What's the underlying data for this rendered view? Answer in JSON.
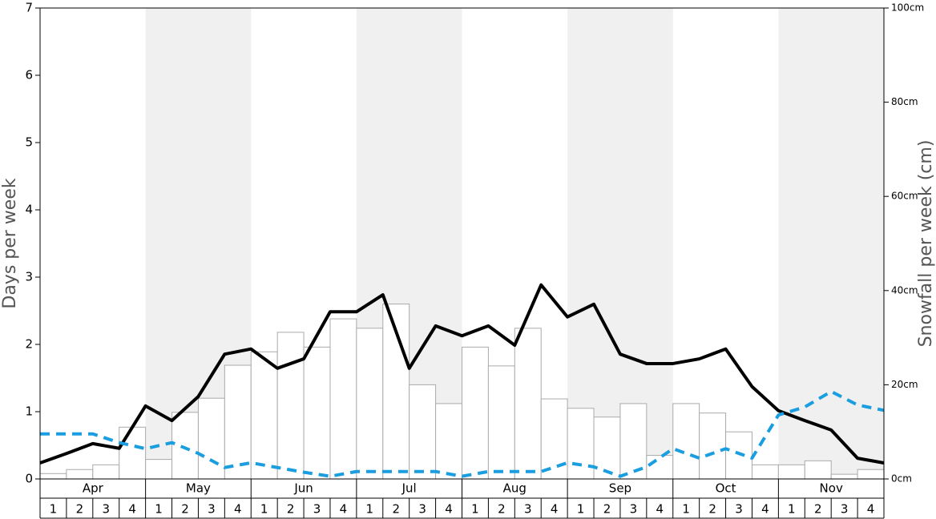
{
  "chart_data": {
    "type": "bar",
    "ylabel": "Days per week",
    "y2label": "Snowfall per week (cm)",
    "months": [
      "Apr",
      "May",
      "Jun",
      "Jul",
      "Aug",
      "Sep",
      "Oct",
      "Nov"
    ],
    "categories": [
      "1",
      "2",
      "3",
      "4",
      "1",
      "2",
      "3",
      "4",
      "1",
      "2",
      "3",
      "4",
      "1",
      "2",
      "3",
      "4",
      "1",
      "2",
      "3",
      "4",
      "1",
      "2",
      "3",
      "4",
      "1",
      "2",
      "3",
      "4",
      "1",
      "2",
      "3",
      "4"
    ],
    "values": [
      0.08,
      0.14,
      0.21,
      0.77,
      0.29,
      0.99,
      1.2,
      1.69,
      1.89,
      2.18,
      1.96,
      2.38,
      2.24,
      2.6,
      1.4,
      1.12,
      1.96,
      1.68,
      2.24,
      1.19,
      1.05,
      0.92,
      1.12,
      0.35,
      1.12,
      0.98,
      0.7,
      0.21,
      0.21,
      0.27,
      0.07,
      0.14
    ],
    "color": "#ffffff",
    "x": [
      0,
      1,
      2,
      3,
      4,
      5,
      6,
      7,
      8,
      9,
      10,
      11,
      12,
      13,
      14,
      15,
      16,
      17,
      18,
      19,
      20,
      21,
      22,
      23,
      24,
      25,
      26,
      27,
      28,
      29,
      30,
      31,
      32
    ],
    "series": [
      {
        "color": "#000000",
        "axis": "y2",
        "style": "solid",
        "values": [
          3.4,
          5.4,
          7.5,
          6.5,
          15.5,
          12.4,
          17.5,
          26.5,
          27.6,
          23.5,
          25.5,
          35.5,
          35.5,
          39.1,
          23.5,
          32.5,
          30.4,
          32.5,
          28.4,
          41.2,
          34.4,
          37.1,
          26.5,
          24.5,
          24.5,
          25.5,
          27.6,
          19.6,
          14.5,
          12.4,
          10.4,
          4.4,
          3.4
        ]
      },
      {
        "color": "#1a9ee0",
        "axis": "y",
        "style": "dashed",
        "values": [
          0.67,
          0.67,
          0.67,
          0.54,
          0.45,
          0.54,
          0.38,
          0.17,
          0.24,
          0.17,
          0.1,
          0.04,
          0.11,
          0.11,
          0.11,
          0.11,
          0.04,
          0.11,
          0.11,
          0.11,
          0.24,
          0.18,
          0.04,
          0.18,
          0.45,
          0.31,
          0.45,
          0.31,
          0.95,
          1.07,
          1.3,
          1.1,
          1.02
        ]
      }
    ],
    "ylim": [
      0,
      7
    ],
    "yticks": [
      0,
      1,
      2,
      3,
      4,
      5,
      6,
      7
    ],
    "y2lim": [
      0,
      100
    ],
    "y2ticks": [
      {
        "value": 0,
        "label": "0cm"
      },
      {
        "value": 20,
        "label": "20cm"
      },
      {
        "value": 40,
        "label": "40cm"
      },
      {
        "value": 60,
        "label": "60cm"
      },
      {
        "value": 80,
        "label": "80cm"
      },
      {
        "value": 100,
        "label": "100cm"
      }
    ],
    "shade": "#f0f0f0"
  }
}
